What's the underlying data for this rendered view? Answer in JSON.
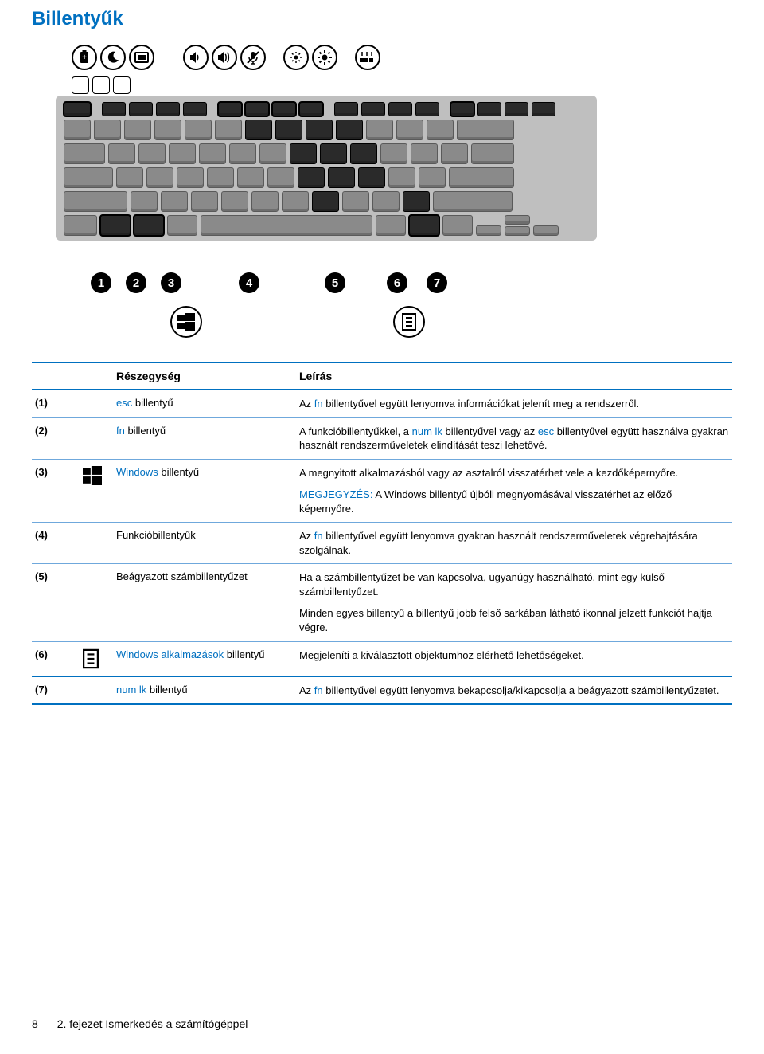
{
  "colors": {
    "hp_blue": "#0070c0",
    "rule": "#0070c0",
    "rule_thin": "#6fa8dc",
    "keyboard_bg": "#bfbfbf",
    "key_bg": "#8a8a8a",
    "key_dark": "#2a2a2a"
  },
  "page_title": "Billentyűk",
  "callout_numbers": [
    "1",
    "2",
    "3",
    "4",
    "5",
    "6",
    "7"
  ],
  "table": {
    "headers": {
      "component": "Részegység",
      "description": "Leírás"
    },
    "rows": [
      {
        "num": "(1)",
        "icon": null,
        "name_hp": "esc",
        "name_rest": " billentyű",
        "desc": [
          {
            "parts": [
              {
                "t": "Az "
              },
              {
                "t": "fn",
                "hp": true
              },
              {
                "t": " billentyűvel együtt lenyomva információkat jelenít meg a rendszerről."
              }
            ]
          }
        ]
      },
      {
        "num": "(2)",
        "icon": null,
        "name_hp": "fn",
        "name_rest": " billentyű",
        "desc": [
          {
            "parts": [
              {
                "t": "A funkcióbillentyűkkel, a "
              },
              {
                "t": "num lk",
                "hp": true
              },
              {
                "t": " billentyűvel vagy az "
              },
              {
                "t": "esc",
                "hp": true
              },
              {
                "t": " billentyűvel együtt használva gyakran használt rendszerműveletek elindítását teszi lehetővé."
              }
            ]
          }
        ]
      },
      {
        "num": "(3)",
        "icon": "windows",
        "name_hp": "Windows",
        "name_rest": " billentyű",
        "desc": [
          {
            "parts": [
              {
                "t": "A megnyitott alkalmazásból vagy az asztalról visszatérhet vele a kezdőképernyőre."
              }
            ]
          },
          {
            "parts": [
              {
                "t": "MEGJEGYZÉS:",
                "hp": true
              },
              {
                "t": "   A Windows billentyű újbóli megnyomásával visszatérhet az előző képernyőre."
              }
            ]
          }
        ]
      },
      {
        "num": "(4)",
        "icon": null,
        "name_hp": "",
        "name_rest": "Funkcióbillentyűk",
        "desc": [
          {
            "parts": [
              {
                "t": "Az "
              },
              {
                "t": "fn",
                "hp": true
              },
              {
                "t": " billentyűvel együtt lenyomva gyakran használt rendszerműveletek végrehajtására szolgálnak."
              }
            ]
          }
        ]
      },
      {
        "num": "(5)",
        "icon": null,
        "name_hp": "",
        "name_rest": "Beágyazott számbillentyűzet",
        "desc": [
          {
            "parts": [
              {
                "t": "Ha a számbillentyűzet be van kapcsolva, ugyanúgy használható, mint egy külső számbillentyűzet."
              }
            ]
          },
          {
            "parts": [
              {
                "t": "Minden egyes billentyű a billentyű jobb felső sarkában látható ikonnal jelzett funkciót hajtja végre."
              }
            ]
          }
        ]
      },
      {
        "num": "(6)",
        "icon": "menu",
        "name_hp": "Windows alkalmazások",
        "name_rest": " billentyű",
        "desc": [
          {
            "parts": [
              {
                "t": "Megjeleníti a kiválasztott objektumhoz elérhető lehetőségeket."
              }
            ]
          }
        ]
      },
      {
        "num": "(7)",
        "icon": null,
        "name_hp": "num lk",
        "name_rest": " billentyű",
        "desc": [
          {
            "parts": [
              {
                "t": "Az "
              },
              {
                "t": "fn",
                "hp": true
              },
              {
                "t": " billentyűvel együtt lenyomva bekapcsolja/kikapcsolja a beágyazott számbillentyűzetet."
              }
            ]
          }
        ],
        "last": true
      }
    ]
  },
  "footer": {
    "page_number": "8",
    "chapter": "2. fejezet   Ismerkedés a számítógéppel"
  }
}
